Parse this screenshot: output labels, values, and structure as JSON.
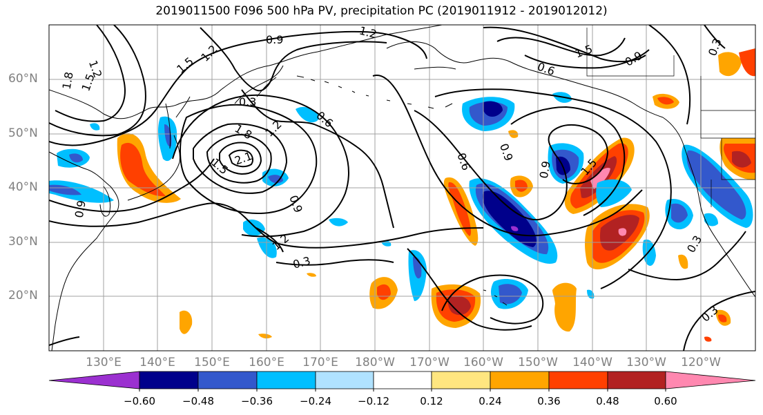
{
  "title": "2019011500 F096 500 hPa PV, precipitation PC (2019011912 - 2019012012)",
  "lat_labels": [
    "60°N",
    "50°N",
    "40°N",
    "30°N",
    "20°N"
  ],
  "lon_labels": [
    "130°E",
    "140°E",
    "150°E",
    "160°E",
    "170°E",
    "180°W",
    "170°W",
    "160°W",
    "150°W",
    "140°W",
    "130°W",
    "120°W"
  ],
  "contour_labels": [
    "1.2",
    "0.9",
    "1.5",
    "1.2",
    "1.8",
    "1.5",
    "1.2",
    "0.3",
    "0.6",
    "1.8",
    "1.2",
    "2.1",
    "1.5",
    "0.9",
    "1.2",
    "0.3",
    "0.9",
    "0.6",
    "0.6",
    "0.9",
    "1.5",
    "0.9",
    "0.9",
    "1.5",
    "0.3",
    "0.3",
    "0.3"
  ],
  "colorbar": {
    "ticks": [
      "−0.60",
      "−0.48",
      "−0.36",
      "−0.24",
      "−0.12",
      "0.12",
      "0.24",
      "0.36",
      "0.48",
      "0.60"
    ],
    "colors": [
      "#9b30d0",
      "#00008b",
      "#3358cc",
      "#00bfff",
      "#b0e2ff",
      "#ffffff",
      "#ffe680",
      "#ffa500",
      "#ff4000",
      "#b22222",
      "#ff88b0"
    ]
  }
}
